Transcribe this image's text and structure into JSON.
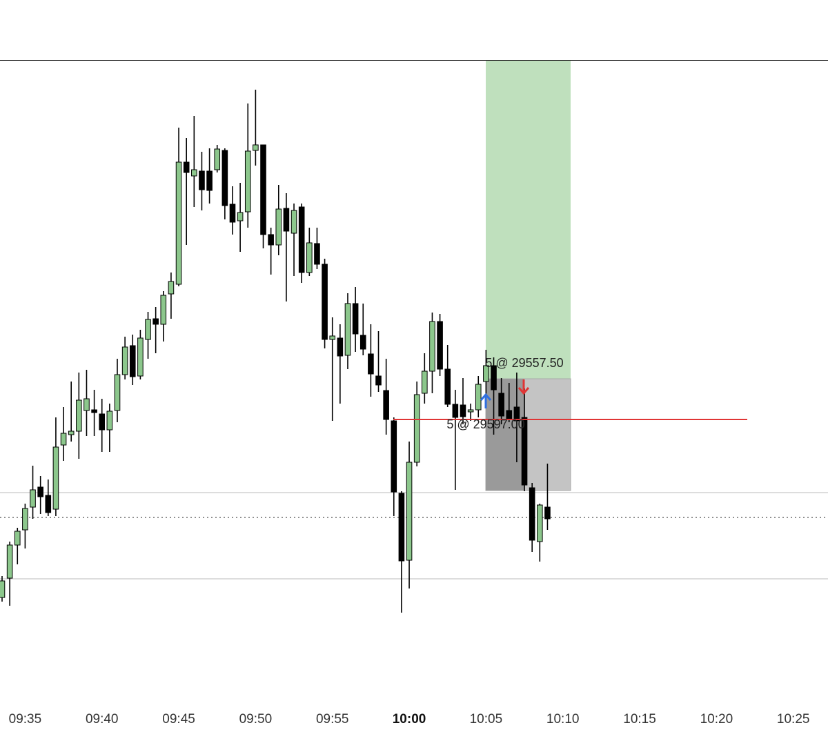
{
  "chart_data": {
    "type": "candlestick",
    "categories": [
      null,
      null,
      null,
      "09:35",
      null,
      null,
      null,
      null,
      null,
      null,
      null,
      null,
      null,
      "09:40",
      null,
      null,
      null,
      null,
      null,
      null,
      null,
      null,
      null,
      "09:45",
      null,
      null,
      null,
      null,
      null,
      null,
      null,
      null,
      null,
      "09:50",
      null,
      null,
      null,
      null,
      null,
      null,
      null,
      null,
      null,
      "09:55",
      null,
      null,
      null,
      null,
      null,
      null,
      null,
      null,
      null,
      "10:00",
      null,
      null,
      null,
      null,
      null,
      null,
      null,
      null,
      null,
      "10:05",
      null,
      null,
      null,
      null,
      null,
      null,
      null,
      null,
      null,
      "10:10",
      null,
      null,
      null,
      null,
      null,
      null,
      null,
      null,
      null,
      "10:15",
      null,
      null,
      null,
      null,
      null,
      null,
      null,
      null,
      null,
      "10:20",
      null,
      null,
      null,
      null,
      null,
      null,
      null,
      null,
      null,
      "10:25"
    ],
    "bold_category": 53,
    "open": [
      29532.5,
      29539.5,
      29551.5,
      29557,
      29565.25,
      29572.5,
      29569.5,
      29564.5,
      29587.75,
      29591.5,
      29592.75,
      29600.25,
      29600.5,
      29599,
      29593.25,
      29600.25,
      29613.25,
      29623.75,
      29612.75,
      29626,
      29633.5,
      29631.5,
      29642.5,
      29646,
      29690.25,
      29685.25,
      29687,
      29687,
      29687.5,
      29694.5,
      29675,
      29669,
      29672.25,
      29694.5,
      29696.5,
      29664,
      29660.25,
      29673.5,
      29664.5,
      29674,
      29650.25,
      29660.75,
      29653.25,
      29626,
      29626.5,
      29620.25,
      29639,
      29627.5,
      29620.75,
      29612.75,
      29607.5,
      29596.5,
      29570.25,
      29546,
      29581.5,
      29606.5,
      29614.5,
      29632.5,
      29615.25,
      29602.5,
      29602.25,
      29599.75,
      29600.5,
      29610.75,
      29616.5,
      29606.5,
      29600.25,
      29601.5,
      29597.75,
      29572.25,
      29552.75,
      29565.25,
      null,
      null,
      null,
      null,
      null,
      null,
      null,
      null,
      null,
      null,
      null,
      null,
      null,
      null,
      null,
      null,
      null,
      null,
      null,
      null,
      null,
      null,
      null,
      null,
      null,
      null,
      null,
      null,
      null,
      null,
      null,
      null
    ],
    "high": [
      29540.25,
      29552.75,
      29557.75,
      29566.5,
      29580.25,
      29576.5,
      29575.25,
      29597.75,
      29601.5,
      29610.75,
      29614,
      29615,
      29607.75,
      29604.5,
      29602.75,
      29619,
      29627,
      29627.75,
      29629.5,
      29636,
      29637.75,
      29643.5,
      29650.25,
      29702.75,
      29699,
      29707,
      29694,
      29695.25,
      29696.5,
      29695.25,
      29681.5,
      29682.75,
      29711.5,
      29716.5,
      29696.5,
      29666.5,
      29682,
      29679,
      29675.25,
      29675.25,
      29666.5,
      29666.5,
      29655.25,
      29634,
      29631.5,
      29642.75,
      29645,
      29639,
      29631.5,
      29629,
      29619,
      29597.75,
      29571,
      29589,
      29610.75,
      29621,
      29635.75,
      29635.25,
      29624,
      29607.75,
      29612,
      29602.75,
      29612.75,
      29622.25,
      29619.5,
      29612,
      29610.25,
      29614,
      29608.25,
      29574,
      29566.5,
      29581,
      null,
      null,
      null,
      null,
      null,
      null,
      null,
      null,
      null,
      null,
      null,
      null,
      null,
      null,
      null,
      null,
      null,
      null,
      null,
      null,
      null,
      null,
      null,
      null,
      null,
      null,
      null,
      null,
      null,
      null,
      null,
      null
    ],
    "low": [
      29531,
      29529.5,
      29544.5,
      29550.25,
      29561,
      29562.75,
      29562,
      29562,
      29582,
      29589,
      29582.75,
      29591,
      29591,
      29585.25,
      29585.25,
      29596,
      29611.5,
      29609.5,
      29611.5,
      29619,
      29621,
      29625.25,
      29633.5,
      29645.25,
      29660.25,
      29674,
      29672.75,
      29675.25,
      29686.5,
      29669.5,
      29664,
      29657.75,
      29666.5,
      29689,
      29659,
      29649.5,
      29656.5,
      29639.75,
      29649,
      29646.5,
      29649,
      29651.5,
      29622.75,
      29596.5,
      29602.75,
      29615.25,
      29621.5,
      29620.25,
      29605.25,
      29607,
      29591.5,
      29562,
      29527,
      29535.75,
      29580,
      29602.75,
      29606.5,
      29612.75,
      29601.5,
      29571.5,
      29595.25,
      29596.5,
      29597.75,
      29604,
      29591.5,
      29595.25,
      29596,
      29581.5,
      29571,
      29549,
      29545.5,
      29557,
      null,
      null,
      null,
      null,
      null,
      null,
      null,
      null,
      null,
      null,
      null,
      null,
      null,
      null,
      null,
      null,
      null,
      null,
      null,
      null,
      null,
      null,
      null,
      null,
      null,
      null,
      null,
      null,
      null,
      null,
      null,
      null
    ],
    "close": [
      29538.5,
      29551.5,
      29556.5,
      29564.75,
      29571.5,
      29569,
      29563.25,
      29587,
      29592,
      29592.75,
      29604,
      29604.5,
      29599.5,
      29593.25,
      29600,
      29613.25,
      29623.25,
      29612.5,
      29626.5,
      29633.25,
      29631.5,
      29642,
      29647,
      29690.25,
      29686.5,
      29687.5,
      29680.25,
      29680,
      29695,
      29674.5,
      29668.5,
      29672,
      29694.25,
      29696.5,
      29664,
      29660.25,
      29673.25,
      29665.25,
      29672.75,
      29650.25,
      29661,
      29653.25,
      29626,
      29627.25,
      29620,
      29639,
      29628,
      29622.5,
      29613.5,
      29609.5,
      29597,
      29570.75,
      29545.75,
      29581.5,
      29606,
      29614.5,
      29632.5,
      29615.25,
      29602.5,
      29597.75,
      29598,
      29600.5,
      29609.75,
      29616.5,
      29607.75,
      29598.25,
      29597,
      29596.5,
      29573.25,
      29553.25,
      29566,
      29561,
      null,
      null,
      null,
      null,
      null,
      null,
      null,
      null,
      null,
      null,
      null,
      null,
      null,
      null,
      null,
      null,
      null,
      null,
      null,
      null,
      null,
      null,
      null,
      null,
      null,
      null,
      null,
      null,
      null,
      null,
      null,
      null
    ],
    "up_color": "#8cc78c",
    "down_color": "#000000",
    "ylim": [
      29496.5,
      29727
    ],
    "levels": [
      {
        "price": 29570.5,
        "style": "solid"
      },
      {
        "price": 29561.5,
        "style": "dotted"
      },
      {
        "price": 29539.25,
        "style": "solid"
      }
    ],
    "position": {
      "target": 29727,
      "entry": 29611.75,
      "stop": 29571.25
    },
    "position_line": {
      "price": 29597,
      "color": "#e03535"
    },
    "trades": [
      {
        "label": "5 @ 29557.50"
      },
      {
        "label": "5 @ 29597.00"
      }
    ]
  }
}
